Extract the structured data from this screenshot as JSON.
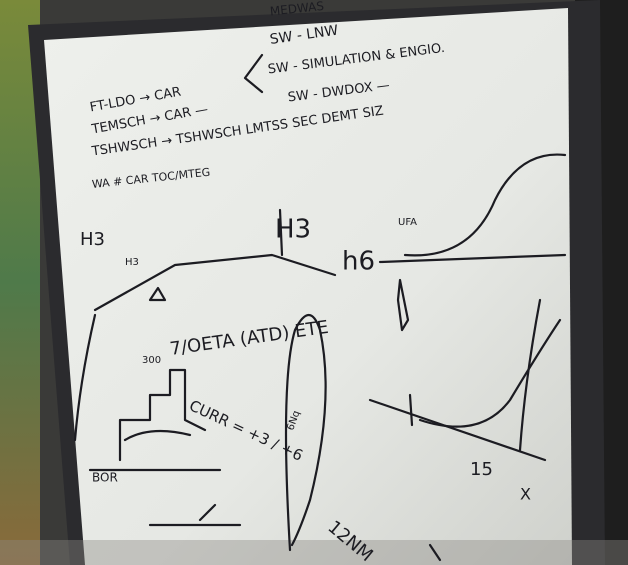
{
  "whiteboard": {
    "notes": [
      "MEDWAS",
      "SW - LNW",
      "SW - SIMULATION & ENGIO.",
      "SW - DWDOX —",
      "FT-LDO → CAR",
      "TEMSCH → CAR —",
      "TSHWSCH → TSHWSCH LMTSS SEC DEMT SIZ",
      "WA # CAR TOC/MTEG"
    ],
    "diagram_labels": [
      "H3",
      "H3",
      "H3",
      "h6",
      "UFA",
      "7/OETA (ATD) ETE",
      "CURR = +3 / +6",
      "300",
      "12NM",
      "BOR",
      "15",
      "X",
      "6Nq"
    ]
  }
}
